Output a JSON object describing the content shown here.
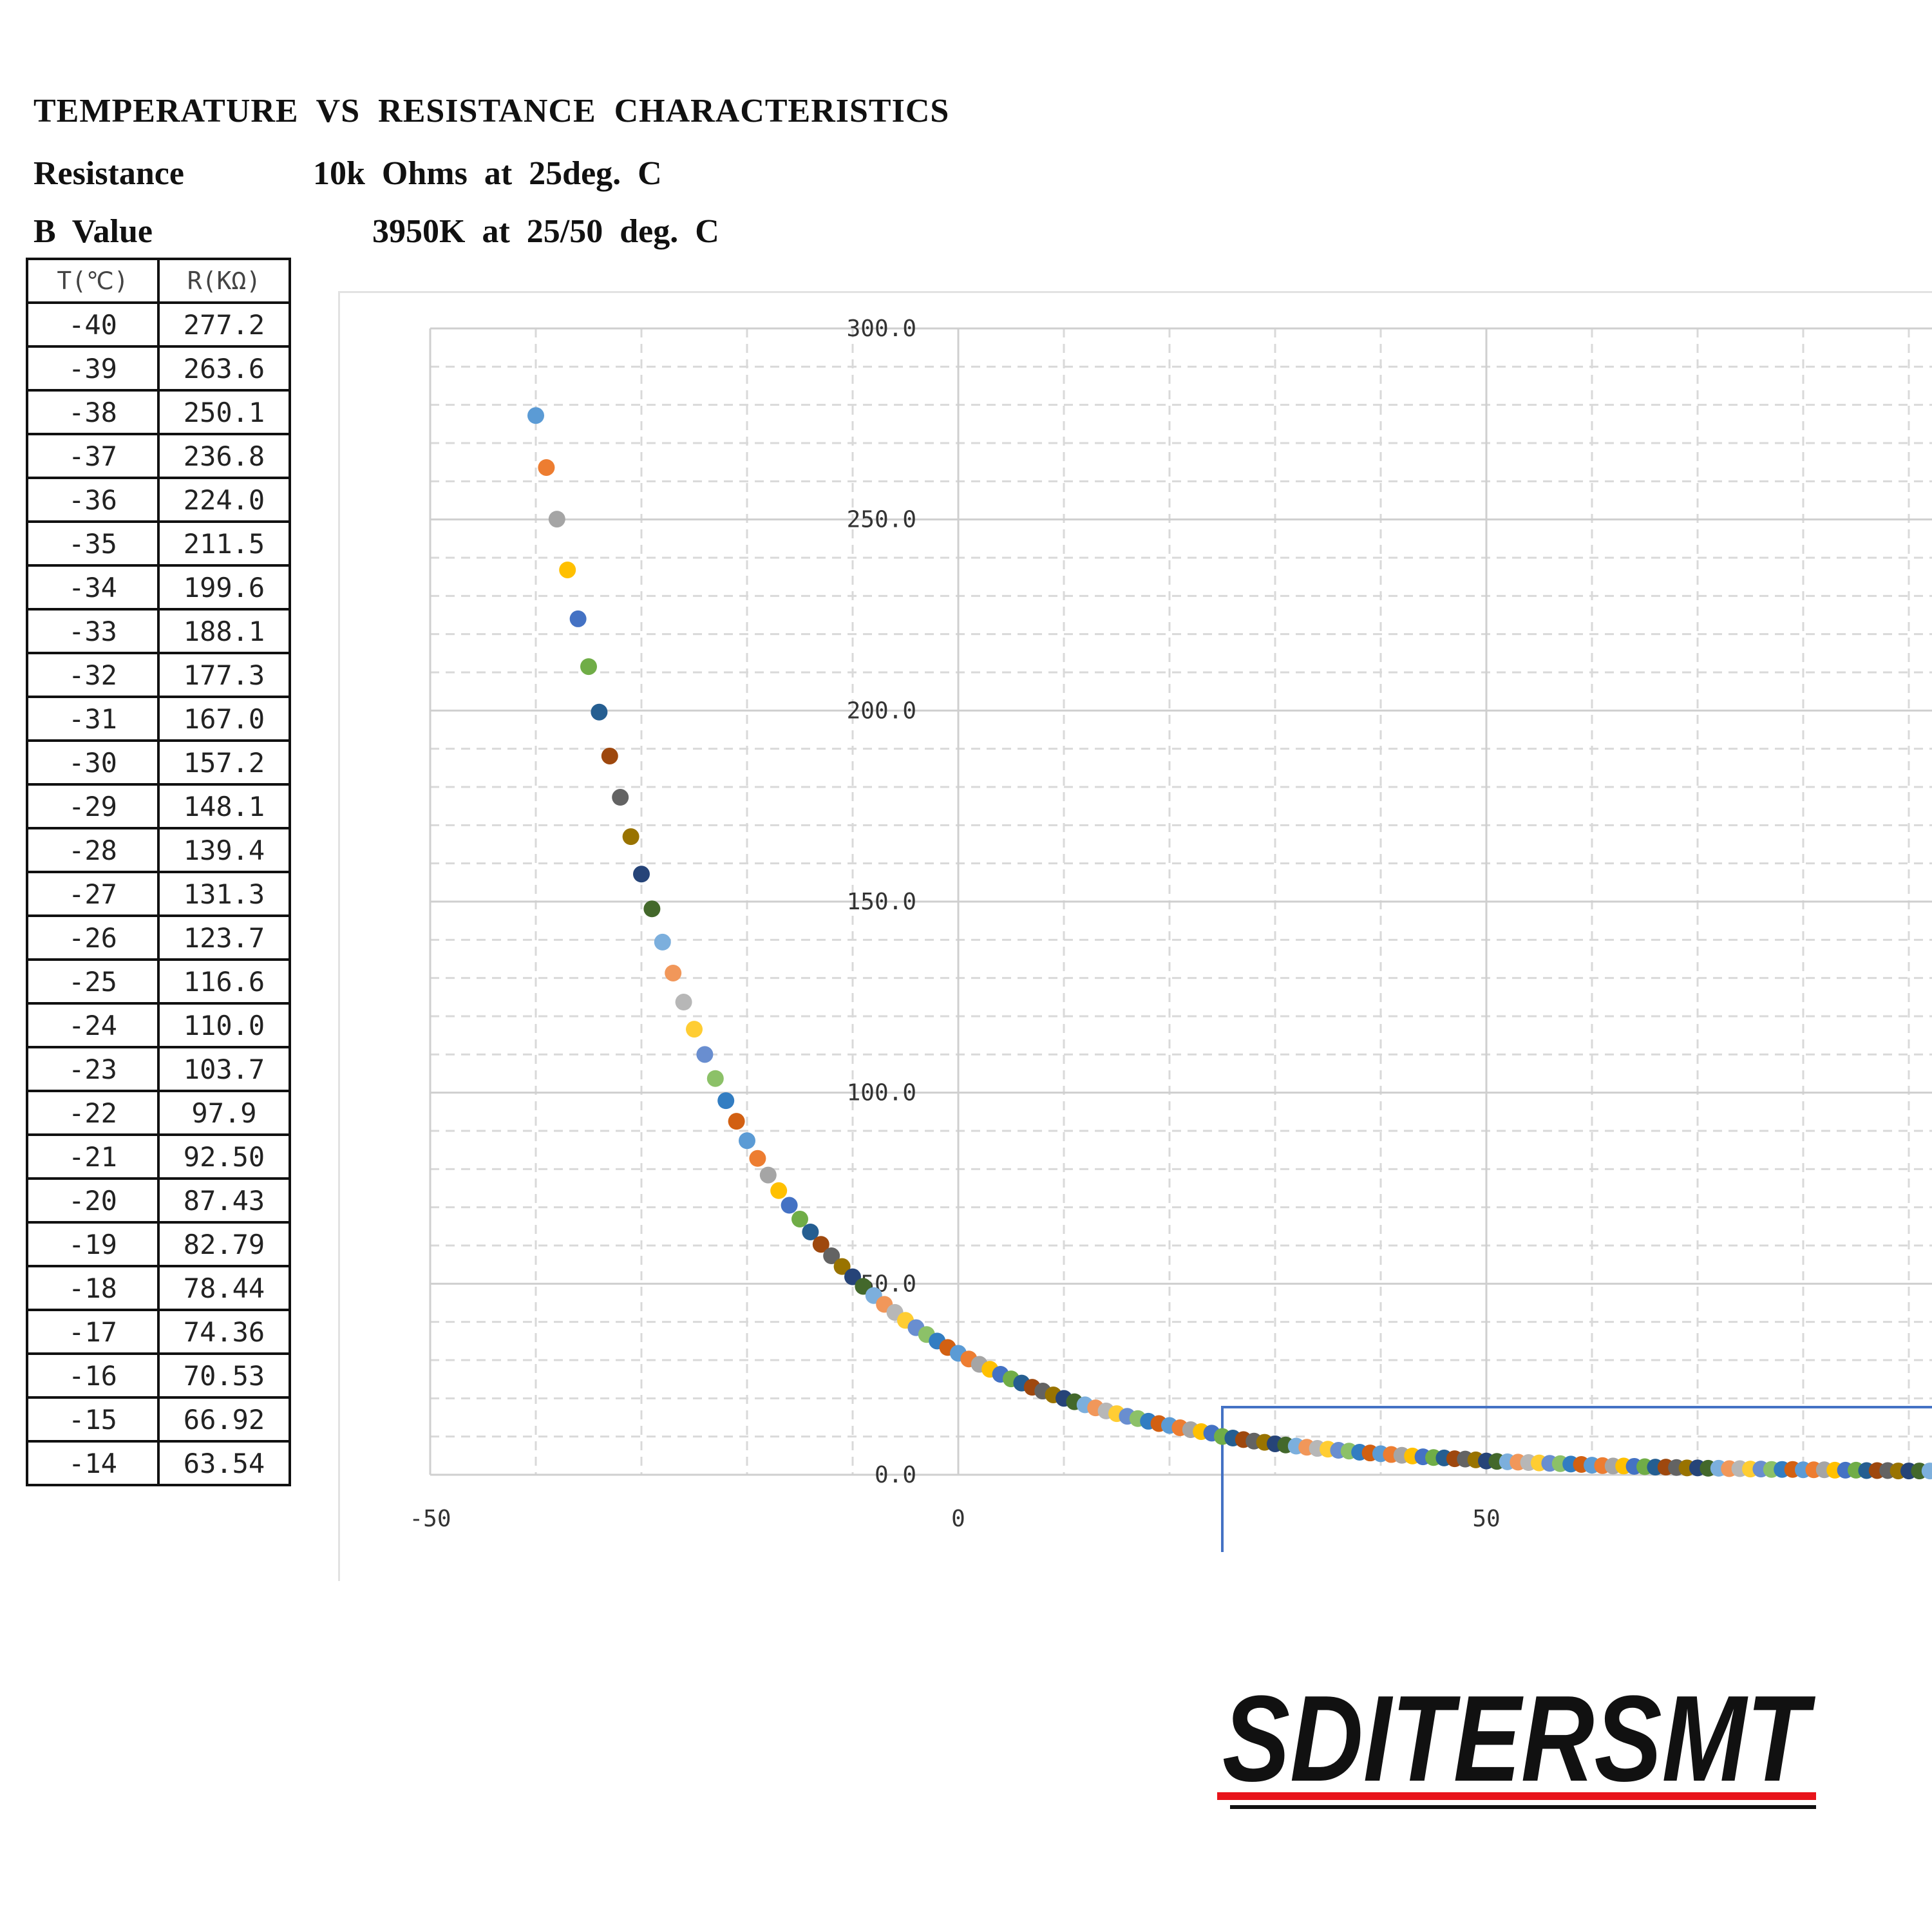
{
  "header": {
    "title": "TEMPERATURE  VS  RESISTANCE  CHARACTERISTICS",
    "resistance_label": "Resistance",
    "resistance_value": "10k  Ohms  at  25deg.  C",
    "b_label": "B  Value",
    "b_value": "3950K  at  25/50  deg.  C"
  },
  "table": {
    "columns": [
      "T(℃)",
      "R(KΩ)"
    ],
    "rows": [
      [
        "-40",
        "277.2"
      ],
      [
        "-39",
        "263.6"
      ],
      [
        "-38",
        "250.1"
      ],
      [
        "-37",
        "236.8"
      ],
      [
        "-36",
        "224.0"
      ],
      [
        "-35",
        "211.5"
      ],
      [
        "-34",
        "199.6"
      ],
      [
        "-33",
        "188.1"
      ],
      [
        "-32",
        "177.3"
      ],
      [
        "-31",
        "167.0"
      ],
      [
        "-30",
        "157.2"
      ],
      [
        "-29",
        "148.1"
      ],
      [
        "-28",
        "139.4"
      ],
      [
        "-27",
        "131.3"
      ],
      [
        "-26",
        "123.7"
      ],
      [
        "-25",
        "116.6"
      ],
      [
        "-24",
        "110.0"
      ],
      [
        "-23",
        "103.7"
      ],
      [
        "-22",
        "97.9"
      ],
      [
        "-21",
        "92.50"
      ],
      [
        "-20",
        "87.43"
      ],
      [
        "-19",
        "82.79"
      ],
      [
        "-18",
        "78.44"
      ],
      [
        "-17",
        "74.36"
      ],
      [
        "-16",
        "70.53"
      ],
      [
        "-15",
        "66.92"
      ],
      [
        "-14",
        "63.54"
      ]
    ]
  },
  "chart_data": {
    "type": "scatter",
    "title": "",
    "xlabel": "",
    "ylabel": "",
    "xlim": [
      -50,
      92
    ],
    "ylim": [
      0,
      300
    ],
    "x_ticks": [
      "-50",
      "0",
      "50"
    ],
    "y_ticks": [
      "0.0",
      "50.0",
      "100.0",
      "150.0",
      "200.0",
      "250.0",
      "300.0"
    ],
    "grid": true,
    "legend": "none",
    "highlight_box_x_from": 25,
    "x": [
      -40,
      -39,
      -38,
      -37,
      -36,
      -35,
      -34,
      -33,
      -32,
      -31,
      -30,
      -29,
      -28,
      -27,
      -26,
      -25,
      -24,
      -23,
      -22,
      -21,
      -20,
      -19,
      -18,
      -17,
      -16,
      -15,
      -14,
      -13,
      -12,
      -11,
      -10,
      -9,
      -8,
      -7,
      -6,
      -5,
      -4,
      -3,
      -2,
      -1,
      0,
      1,
      2,
      3,
      4,
      5,
      6,
      7,
      8,
      9,
      10,
      11,
      12,
      13,
      14,
      15,
      16,
      17,
      18,
      19,
      20,
      21,
      22,
      23,
      24,
      25,
      26,
      27,
      28,
      29,
      30,
      31,
      32,
      33,
      34,
      35,
      36,
      37,
      38,
      39,
      40,
      41,
      42,
      43,
      44,
      45,
      46,
      47,
      48,
      49,
      50,
      51,
      52,
      53,
      54,
      55,
      56,
      57,
      58,
      59,
      60,
      61,
      62,
      63,
      64,
      65,
      66,
      67,
      68,
      69,
      70,
      71,
      72,
      73,
      74,
      75,
      76,
      77,
      78,
      79,
      80,
      81,
      82,
      83,
      84,
      85,
      86,
      87,
      88,
      89,
      90,
      91,
      92
    ],
    "y": [
      277.2,
      263.6,
      250.1,
      236.8,
      224.0,
      211.5,
      199.6,
      188.1,
      177.3,
      167.0,
      157.2,
      148.1,
      139.4,
      131.3,
      123.7,
      116.6,
      110.0,
      103.7,
      97.9,
      92.5,
      87.43,
      82.79,
      78.44,
      74.36,
      70.53,
      66.92,
      63.54,
      60.3,
      57.3,
      54.5,
      51.8,
      49.3,
      46.9,
      44.6,
      42.5,
      40.4,
      38.5,
      36.7,
      35.0,
      33.3,
      31.8,
      30.3,
      28.9,
      27.6,
      26.3,
      25.1,
      24.0,
      22.9,
      21.9,
      20.9,
      20.0,
      19.1,
      18.3,
      17.5,
      16.7,
      16.0,
      15.3,
      14.7,
      14.0,
      13.4,
      12.9,
      12.3,
      11.8,
      11.3,
      10.9,
      10.0,
      9.6,
      9.2,
      8.8,
      8.5,
      8.1,
      7.8,
      7.5,
      7.2,
      6.9,
      6.7,
      6.4,
      6.2,
      5.9,
      5.7,
      5.5,
      5.3,
      5.1,
      4.9,
      4.7,
      4.5,
      4.4,
      4.2,
      4.1,
      3.9,
      3.6,
      3.5,
      3.4,
      3.3,
      3.2,
      3.1,
      3.0,
      2.9,
      2.8,
      2.7,
      2.5,
      2.4,
      2.3,
      2.3,
      2.2,
      2.1,
      2.0,
      2.0,
      1.9,
      1.8,
      1.8,
      1.7,
      1.7,
      1.6,
      1.6,
      1.5,
      1.5,
      1.4,
      1.4,
      1.4,
      1.3,
      1.3,
      1.3,
      1.2,
      1.2,
      1.2,
      1.1,
      1.1,
      1.1,
      1.0,
      1.0,
      1.0,
      1.0
    ],
    "palette": [
      "#5b9bd5",
      "#ed7d31",
      "#a5a5a5",
      "#ffc000",
      "#4472c4",
      "#70ad47",
      "#255e91",
      "#9e480e",
      "#636363",
      "#997300",
      "#264478",
      "#43682b",
      "#7cafdd",
      "#f1975a",
      "#b7b7b7",
      "#ffcd33",
      "#698ed0",
      "#8cc168",
      "#327dc2",
      "#d26012"
    ]
  },
  "logo": {
    "text": "SDITERSMT",
    "colors": {
      "red": "#e8141b",
      "black": "#111111"
    }
  }
}
